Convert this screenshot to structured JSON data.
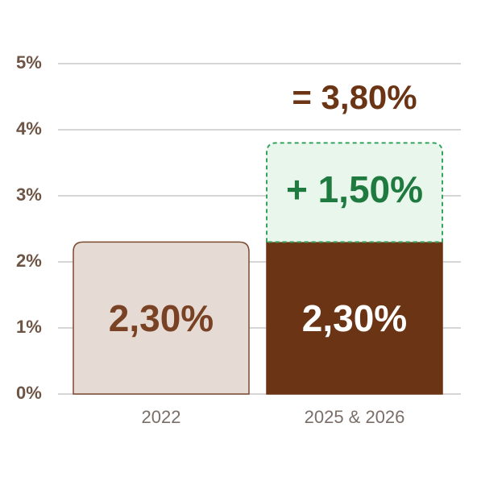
{
  "chart_data": {
    "type": "stacked_bar",
    "categories": [
      "2022",
      "2025 & 2026"
    ],
    "series": [
      {
        "colors": [
          "#e6dbd4",
          "#6b3415"
        ],
        "border": "#7a4a2e",
        "label_colors": [
          "#7a4225",
          "#ffffff"
        ],
        "values": [
          2.3,
          2.3
        ],
        "value_labels": [
          "2,30%",
          "2,30%"
        ]
      },
      {
        "colors": [
          null,
          "#e8f6ec"
        ],
        "border": "#35a35e",
        "label_colors": [
          null,
          "#1f7a3f"
        ],
        "dashed": true,
        "values": [
          null,
          1.5
        ],
        "value_labels": [
          null,
          "+ 1,50%"
        ]
      }
    ],
    "annotation": "= 3,80%",
    "ylim": [
      0,
      5
    ],
    "yticks": [
      {
        "value": 0,
        "label": "0%"
      },
      {
        "value": 1,
        "label": "1%"
      },
      {
        "value": 2,
        "label": "2%"
      },
      {
        "value": 3,
        "label": "3%"
      },
      {
        "value": 4,
        "label": "4%"
      },
      {
        "value": 5,
        "label": "5%"
      }
    ],
    "grid": true
  }
}
